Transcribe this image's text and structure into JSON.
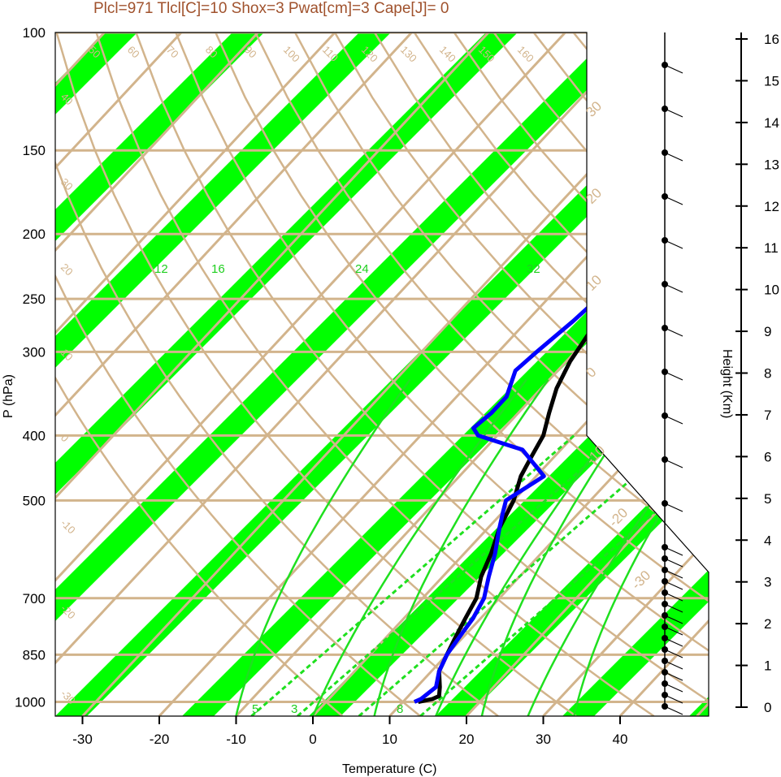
{
  "title": "Plcl=971 Tlcl[C]=10 Shox=3 Pwat[cm]=3 Cape[J]= 0",
  "colors": {
    "band": "#00ff00",
    "tan": "#d2b48c",
    "sounding_temp": "#000000",
    "sounding_dew": "#0000ff",
    "adiabat": "#00ff00",
    "title": "#a0522d"
  },
  "chart_data": {
    "type": "line",
    "title": "Plcl=971 Tlcl[C]=10 Shox=3 Pwat[cm]=3 Cape[J]= 0",
    "xlabel": "Temperature (C)",
    "ylabel": "P (hPa)",
    "y2label": "Height (Km)",
    "xlim": [
      -34,
      52
    ],
    "ylim": [
      1050,
      100
    ],
    "y_log": true,
    "x_ticks": [
      -30,
      -20,
      -10,
      0,
      10,
      20,
      30,
      40
    ],
    "p_ticks": [
      100,
      150,
      200,
      250,
      300,
      400,
      500,
      700,
      850,
      1000
    ],
    "height_ticks": [
      0,
      1,
      2,
      3,
      4,
      5,
      6,
      7,
      8,
      9,
      10,
      11,
      12,
      13,
      14,
      15,
      16
    ],
    "isotherm_labels": [
      {
        "text": "50",
        "at": [
          -25,
          1050
        ]
      },
      {
        "text": "60",
        "at": [
          -20,
          1050
        ]
      },
      {
        "text": "70",
        "at": [
          -15,
          1050
        ]
      },
      {
        "text": "80",
        "at": [
          -10,
          1050
        ]
      },
      {
        "text": "90",
        "at": [
          -5,
          1050
        ]
      },
      {
        "text": "100",
        "at": [
          0,
          1050
        ]
      },
      {
        "text": "110",
        "at": [
          5,
          1050
        ]
      },
      {
        "text": "120",
        "at": [
          10,
          1050
        ]
      },
      {
        "text": "130",
        "at": [
          15,
          1050
        ]
      },
      {
        "text": "140",
        "at": [
          20,
          1050
        ]
      },
      {
        "text": "150",
        "at": [
          25,
          1050
        ]
      },
      {
        "text": "160",
        "at": [
          30,
          1050
        ]
      }
    ],
    "isotherm_side_labels": [
      "40",
      "30",
      "20",
      "10",
      "0",
      "-10",
      "-20",
      "-30"
    ],
    "isotherm_right_labels": [
      "30",
      "20",
      "10",
      "0",
      "-10",
      "-20",
      "-30"
    ],
    "mixing_ratio_labels": [
      {
        "text": "12",
        "x": -20
      },
      {
        "text": "16",
        "x": -13
      },
      {
        "text": "24",
        "x": 5
      },
      {
        "text": "32",
        "x": 28
      },
      {
        "text": "3",
        "x": -2
      },
      {
        "text": "8",
        "x": 11
      },
      {
        "text": "5",
        "x": -8
      }
    ],
    "series": [
      {
        "key": "temperature",
        "points": [
          [
            12,
            1000
          ],
          [
            13.5,
            990
          ],
          [
            14,
            980
          ],
          [
            13,
            950
          ],
          [
            11,
            900
          ],
          [
            10,
            850
          ],
          [
            9,
            800
          ],
          [
            8,
            750
          ],
          [
            7,
            700
          ],
          [
            5,
            650
          ],
          [
            3.5,
            600
          ],
          [
            1.5,
            550
          ],
          [
            0,
            500
          ],
          [
            -2,
            460
          ],
          [
            -3,
            430
          ],
          [
            -4,
            400
          ],
          [
            -6,
            370
          ],
          [
            -8,
            340
          ],
          [
            -9.5,
            310
          ],
          [
            -10.5,
            280
          ],
          [
            -10.8,
            260
          ],
          [
            -10.5,
            240
          ],
          [
            -9,
            225
          ],
          [
            -6,
            210
          ],
          [
            -3,
            195
          ],
          [
            0,
            180
          ],
          [
            3,
            170
          ],
          [
            6,
            162
          ],
          [
            7.5,
            155
          ],
          [
            8.5,
            145
          ],
          [
            10.5,
            132
          ],
          [
            13,
            122
          ],
          [
            15,
            115
          ],
          [
            16,
            110
          ],
          [
            17,
            106
          ]
        ]
      },
      {
        "key": "dewpoint",
        "points": [
          [
            11.5,
            1000
          ],
          [
            12,
            990
          ],
          [
            12.5,
            950
          ],
          [
            11,
            900
          ],
          [
            10,
            850
          ],
          [
            9.5,
            800
          ],
          [
            9,
            750
          ],
          [
            8,
            700
          ],
          [
            6,
            650
          ],
          [
            4,
            600
          ],
          [
            1.5,
            550
          ],
          [
            0,
            520
          ],
          [
            -1,
            500
          ],
          [
            1,
            460
          ],
          [
            -5,
            420
          ],
          [
            -12.5,
            400
          ],
          [
            -14,
            390
          ],
          [
            -13.5,
            370
          ],
          [
            -13.5,
            350
          ],
          [
            -15.5,
            320
          ],
          [
            -15,
            300
          ],
          [
            -14,
            270
          ],
          [
            -13.5,
            250
          ],
          [
            -14,
            220
          ],
          [
            -15,
            200
          ],
          [
            -15,
            185
          ],
          [
            -15.5,
            170
          ],
          [
            -17.5,
            160
          ],
          [
            -17,
            150
          ],
          [
            -16,
            140
          ],
          [
            -13,
            125
          ],
          [
            -10,
            112
          ],
          [
            -8,
            106
          ]
        ]
      }
    ]
  }
}
